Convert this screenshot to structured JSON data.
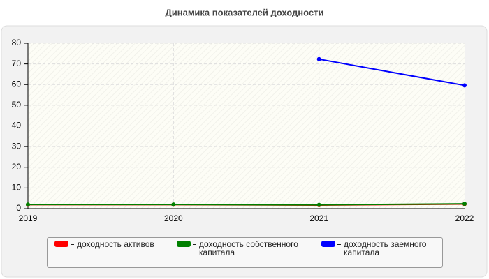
{
  "chart_data": {
    "type": "line",
    "title": "Динамика показателей доходности",
    "categories": [
      "2019",
      "2020",
      "2021",
      "2022"
    ],
    "series": [
      {
        "name": "доходность активов",
        "color": "#ff0000",
        "values": [
          1.9,
          1.9,
          1.7,
          2.2
        ]
      },
      {
        "name": "доходность собственного капитала",
        "color": "#008000",
        "values": [
          2,
          2,
          1.8,
          2.3
        ]
      },
      {
        "name": "доходность заемного капитала",
        "color": "#0000ff",
        "values": [
          null,
          null,
          72.3,
          59.6
        ]
      }
    ],
    "ylim": [
      0,
      80
    ],
    "yticks": [
      0,
      10,
      20,
      30,
      40,
      50,
      60,
      70,
      80
    ],
    "grid": true
  }
}
